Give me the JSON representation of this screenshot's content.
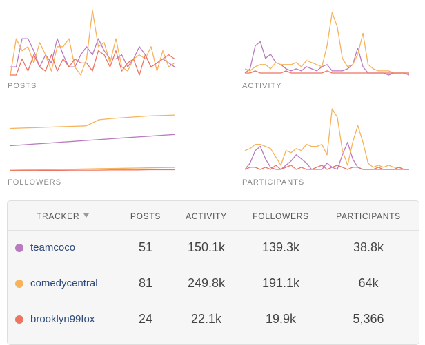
{
  "charts": {
    "posts": {
      "label": "POSTS",
      "series": [
        {
          "color": "#b97ac0",
          "values": [
            2,
            2,
            9,
            9,
            6,
            2,
            5,
            3,
            9,
            5,
            2,
            2,
            5,
            7,
            5,
            9,
            6,
            4,
            4,
            5,
            2,
            4,
            7,
            5,
            2,
            3,
            4,
            3,
            2
          ]
        },
        {
          "color": "#f7b25a",
          "values": [
            0,
            9,
            6,
            7,
            3,
            8,
            5,
            1,
            7,
            7,
            9,
            2,
            0,
            4,
            16,
            7,
            8,
            3,
            9,
            2,
            1,
            4,
            5,
            4,
            7,
            1,
            6,
            2,
            3
          ]
        },
        {
          "color": "#ee7462",
          "values": [
            0,
            0,
            4,
            1,
            5,
            2,
            1,
            5,
            1,
            4,
            2,
            4,
            3,
            3,
            1,
            6,
            5,
            2,
            6,
            1,
            3,
            4,
            0,
            5,
            2,
            3,
            4,
            5,
            4
          ]
        }
      ],
      "ymax": 17
    },
    "activity": {
      "label": "ACTIVITY",
      "series": [
        {
          "color": "#b97ac0",
          "values": [
            1,
            3,
            14,
            16,
            8,
            10,
            6,
            5,
            3,
            2,
            3,
            2,
            4,
            3,
            2,
            4,
            5,
            2,
            2,
            2,
            3,
            5,
            13,
            4,
            1,
            1,
            1,
            1,
            0,
            1,
            1,
            1,
            0
          ]
        },
        {
          "color": "#f7b25a",
          "values": [
            3,
            2,
            4,
            5,
            5,
            3,
            6,
            5,
            5,
            5,
            6,
            4,
            7,
            6,
            5,
            4,
            14,
            30,
            23,
            8,
            4,
            5,
            10,
            20,
            5,
            3,
            2,
            2,
            2,
            1,
            1,
            1,
            1
          ]
        },
        {
          "color": "#ee7462",
          "values": [
            1,
            1,
            2,
            1,
            1,
            1,
            1,
            1,
            2,
            1,
            1,
            1,
            1,
            1,
            1,
            1,
            2,
            1,
            1,
            1,
            1,
            1,
            1,
            1,
            1,
            1,
            1,
            1,
            1,
            1,
            1,
            1,
            1
          ]
        }
      ],
      "ymax": 33
    },
    "followers": {
      "label": "FOLLOWERS",
      "series": [
        {
          "color": "#f7b25a",
          "values": [
            10,
            10.1,
            10.2,
            10.3,
            10.4,
            10.5,
            10.6,
            12,
            12.3,
            12.5,
            12.7,
            12.9,
            13,
            13.1
          ]
        },
        {
          "color": "#b97ac0",
          "values": [
            6,
            6.2,
            6.4,
            6.6,
            6.8,
            7,
            7.2,
            7.4,
            7.6,
            7.8,
            8,
            8.2,
            8.4,
            8.6
          ]
        },
        {
          "color": "#f7b25a",
          "values": [
            0.3,
            0.35,
            0.4,
            0.45,
            0.5,
            0.55,
            0.6,
            0.65,
            0.7,
            0.75,
            0.8,
            0.85,
            0.9,
            0.95
          ]
        },
        {
          "color": "#ee7462",
          "values": [
            0.2,
            0.2,
            0.2,
            0.25,
            0.25,
            0.3,
            0.3,
            0.3,
            0.35,
            0.35,
            0.35,
            0.4,
            0.4,
            0.4
          ]
        }
      ],
      "ymax": 16
    },
    "participants": {
      "label": "PARTICIPANTS",
      "series": [
        {
          "color": "#b97ac0",
          "values": [
            1,
            4,
            10,
            12,
            6,
            2,
            1,
            1,
            3,
            5,
            8,
            6,
            4,
            1,
            1,
            1,
            4,
            2,
            1,
            8,
            14,
            6,
            2,
            1,
            1,
            1,
            1,
            1,
            1,
            1,
            1,
            1,
            1
          ]
        },
        {
          "color": "#f7b25a",
          "values": [
            10,
            11,
            13,
            13,
            12,
            11,
            7,
            3,
            10,
            9,
            11,
            10,
            13,
            12,
            12,
            13,
            8,
            30,
            26,
            10,
            3,
            14,
            22,
            14,
            4,
            2,
            3,
            2,
            3,
            2,
            2,
            1,
            1
          ]
        },
        {
          "color": "#ee7462",
          "values": [
            1,
            2,
            2,
            1,
            2,
            1,
            3,
            1,
            2,
            3,
            1,
            2,
            1,
            1,
            2,
            3,
            1,
            2,
            3,
            2,
            1,
            2,
            2,
            1,
            1,
            1,
            2,
            1,
            1,
            1,
            2,
            1,
            1
          ]
        }
      ],
      "ymax": 33
    }
  },
  "table": {
    "headers": {
      "tracker": "TRACKER",
      "posts": "POSTS",
      "activity": "ACTIVITY",
      "followers": "FOLLOWERS",
      "participants": "PARTICIPANTS"
    },
    "rows": [
      {
        "name": "teamcoco",
        "color": "#b97ac0",
        "posts": "51",
        "activity": "150.1k",
        "followers": "139.3k",
        "participants": "38.8k"
      },
      {
        "name": "comedycentral",
        "color": "#f7b25a",
        "posts": "81",
        "activity": "249.8k",
        "followers": "191.1k",
        "participants": "64k"
      },
      {
        "name": "brooklyn99fox",
        "color": "#ee7462",
        "posts": "24",
        "activity": "22.1k",
        "followers": "19.9k",
        "participants": "5,366"
      }
    ]
  }
}
